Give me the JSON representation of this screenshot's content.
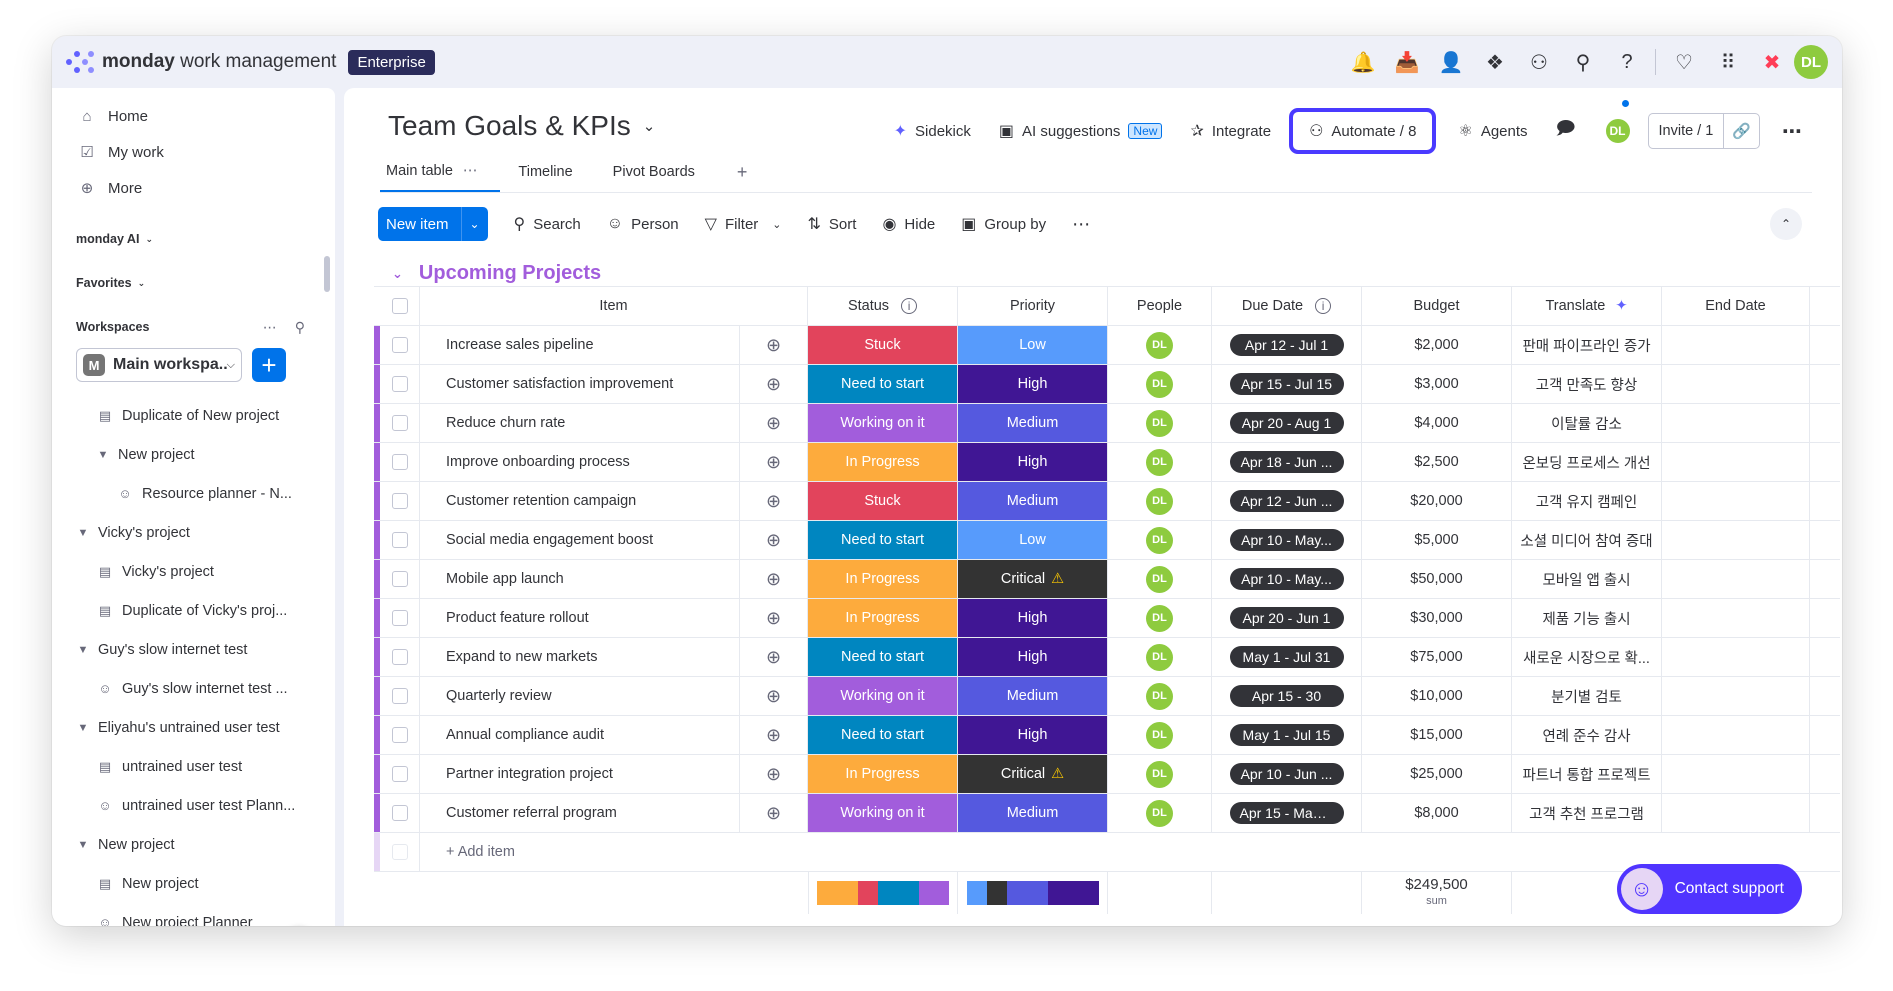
{
  "colors": {
    "accent": "#0073ea",
    "group": "#a25ddc",
    "status": {
      "Stuck": "#e2445c",
      "Need to start": "#0086c0",
      "Working on it": "#a25ddc",
      "In Progress": "#fdab3d"
    },
    "priority": {
      "Low": "#579bfc",
      "High": "#401694",
      "Medium": "#5559df",
      "Critical": "#333333"
    }
  },
  "topbar": {
    "brand_bold": "monday",
    "brand_rest": " work management",
    "plan": "Enterprise",
    "avatar": "DL",
    "icons": [
      "bell-icon",
      "inbox-icon",
      "invite-members-icon",
      "apps-icon",
      "ai-bot-icon",
      "search-icon",
      "help-icon",
      "heart-icon",
      "grid-icon",
      "monday-logo-icon"
    ]
  },
  "sidebar": {
    "nav": [
      {
        "label": "Home",
        "icon": "home-icon"
      },
      {
        "label": "My work",
        "icon": "calendar-check-icon"
      },
      {
        "label": "More",
        "icon": "more-circle-icon"
      }
    ],
    "monday_ai": "monday AI",
    "favorites": "Favorites",
    "workspaces": "Workspaces",
    "workspace_initial": "M",
    "workspace_name": "Main workspa...",
    "tree": [
      {
        "label": "Duplicate of New project",
        "type": "board",
        "indent": 1
      },
      {
        "label": "New project",
        "type": "folder",
        "indent": 1
      },
      {
        "label": "Resource planner - N...",
        "type": "person",
        "indent": 2
      },
      {
        "label": "Vicky's project",
        "type": "folder",
        "indent": 0
      },
      {
        "label": "Vicky's project",
        "type": "board",
        "indent": 1
      },
      {
        "label": "Duplicate of Vicky's proj...",
        "type": "board",
        "indent": 1
      },
      {
        "label": "Guy's slow internet test",
        "type": "folder",
        "indent": 0
      },
      {
        "label": "Guy's slow internet test ...",
        "type": "person",
        "indent": 1
      },
      {
        "label": "Eliyahu's untrained user test",
        "type": "folder",
        "indent": 0
      },
      {
        "label": "untrained user test",
        "type": "board",
        "indent": 1
      },
      {
        "label": "untrained user test Plann...",
        "type": "person",
        "indent": 1
      },
      {
        "label": "New project",
        "type": "folder",
        "indent": 0
      },
      {
        "label": "New project",
        "type": "board",
        "indent": 1
      },
      {
        "label": "New project Planner",
        "type": "person",
        "indent": 1
      }
    ]
  },
  "board": {
    "title": "Team Goals & KPIs",
    "actions": {
      "sidekick": "Sidekick",
      "ai_suggestions": "AI suggestions",
      "new_tag": "New",
      "integrate": "Integrate",
      "automate": "Automate / 8",
      "agents": "Agents",
      "avatar": "DL",
      "invite": "Invite / 1"
    },
    "tabs": [
      "Main table",
      "Timeline",
      "Pivot Boards"
    ],
    "toolbar": {
      "new_item": "New item",
      "search": "Search",
      "person": "Person",
      "filter": "Filter",
      "sort": "Sort",
      "hide": "Hide",
      "group_by": "Group by"
    },
    "group": "Upcoming Projects",
    "columns": {
      "item": "Item",
      "status": "Status",
      "priority": "Priority",
      "people": "People",
      "due": "Due Date",
      "budget": "Budget",
      "translate": "Translate",
      "end": "End Date"
    },
    "rows": [
      {
        "item": "Increase sales pipeline",
        "status": "Stuck",
        "priority": "Low",
        "person": "DL",
        "due": "Apr 12 - Jul 1",
        "budget": "$2,000",
        "translate": "판매 파이프라인 증가"
      },
      {
        "item": "Customer satisfaction improvement",
        "status": "Need to start",
        "priority": "High",
        "person": "DL",
        "due": "Apr 15 - Jul 15",
        "budget": "$3,000",
        "translate": "고객 만족도 향상"
      },
      {
        "item": "Reduce churn rate",
        "status": "Working on it",
        "priority": "Medium",
        "person": "DL",
        "due": "Apr 20 - Aug 1",
        "budget": "$4,000",
        "translate": "이탈률 감소"
      },
      {
        "item": "Improve onboarding process",
        "status": "In Progress",
        "priority": "High",
        "person": "DL",
        "due": "Apr 18 - Jun ...",
        "budget": "$2,500",
        "translate": "온보딩 프로세스 개선"
      },
      {
        "item": "Customer retention campaign",
        "status": "Stuck",
        "priority": "Medium",
        "person": "DL",
        "due": "Apr 12 - Jun ...",
        "budget": "$20,000",
        "translate": "고객 유지 캠페인"
      },
      {
        "item": "Social media engagement boost",
        "status": "Need to start",
        "priority": "Low",
        "person": "DL",
        "due": "Apr 10 - May...",
        "budget": "$5,000",
        "translate": "소셜 미디어 참여 증대"
      },
      {
        "item": "Mobile app launch",
        "status": "In Progress",
        "priority": "Critical",
        "person": "DL",
        "due": "Apr 10 - May...",
        "budget": "$50,000",
        "translate": "모바일 앱 출시"
      },
      {
        "item": "Product feature rollout",
        "status": "In Progress",
        "priority": "High",
        "person": "DL",
        "due": "Apr 20 - Jun 1",
        "budget": "$30,000",
        "translate": "제품 기능 출시"
      },
      {
        "item": "Expand to new markets",
        "status": "Need to start",
        "priority": "High",
        "person": "DL",
        "due": "May 1 - Jul 31",
        "budget": "$75,000",
        "translate": "새로운 시장으로 확..."
      },
      {
        "item": "Quarterly review",
        "status": "Working on it",
        "priority": "Medium",
        "person": "DL",
        "due": "Apr 15 - 30",
        "budget": "$10,000",
        "translate": "분기별 검토"
      },
      {
        "item": "Annual compliance audit",
        "status": "Need to start",
        "priority": "High",
        "person": "DL",
        "due": "May 1 - Jul 15",
        "budget": "$15,000",
        "translate": "연례 준수 감사"
      },
      {
        "item": "Partner integration project",
        "status": "In Progress",
        "priority": "Critical",
        "person": "DL",
        "due": "Apr 10 - Jun ...",
        "budget": "$25,000",
        "translate": "파트너 통합 프로젝트"
      },
      {
        "item": "Customer referral program",
        "status": "Working on it",
        "priority": "Medium",
        "person": "DL",
        "due": "Apr 15 - May ...",
        "budget": "$8,000",
        "translate": "고객 추천 프로그램"
      }
    ],
    "add_item": "+ Add item",
    "status_summary": [
      {
        "label": "In Progress",
        "share": 4
      },
      {
        "label": "Stuck",
        "share": 2
      },
      {
        "label": "Need to start",
        "share": 4
      },
      {
        "label": "Working on it",
        "share": 3
      }
    ],
    "priority_summary": [
      {
        "label": "Low",
        "share": 2
      },
      {
        "label": "Critical",
        "share": 2
      },
      {
        "label": "Medium",
        "share": 4
      },
      {
        "label": "High",
        "share": 5
      }
    ],
    "budget_sum": "$249,500",
    "budget_sum_label": "sum",
    "contact_support": "Contact support"
  }
}
